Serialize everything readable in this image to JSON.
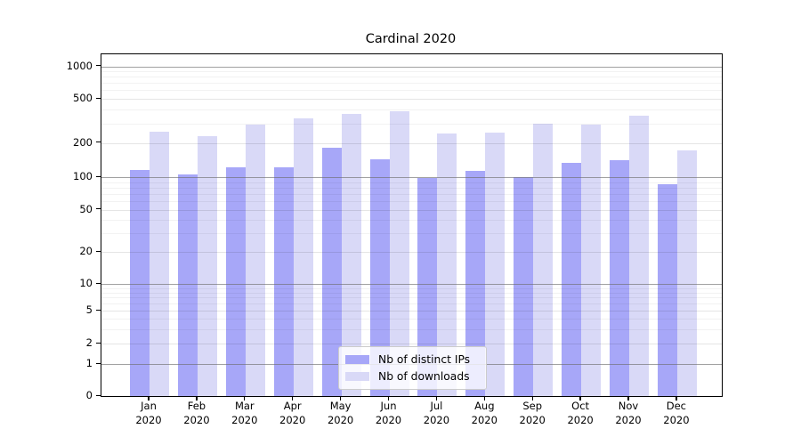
{
  "title": "Cardinal 2020",
  "chart_data": {
    "type": "bar",
    "title": "Cardinal 2020",
    "xlabel": "",
    "ylabel": "",
    "yscale": "symlog",
    "yticks": [
      0,
      1,
      2,
      5,
      10,
      20,
      50,
      100,
      200,
      500,
      1000
    ],
    "minor_gridline_values": [
      3,
      4,
      6,
      7,
      8,
      9,
      30,
      40,
      60,
      70,
      80,
      90,
      300,
      400,
      600,
      700,
      800,
      900
    ],
    "major_gridline_values": [
      1,
      10,
      100,
      1000
    ],
    "ylim": [
      0,
      1100
    ],
    "grid": true,
    "legend_position": "lower-center",
    "categories": [
      "Jan 2020",
      "Feb 2020",
      "Mar 2020",
      "Apr 2020",
      "May 2020",
      "Jun 2020",
      "Jul 2020",
      "Aug 2020",
      "Sep 2020",
      "Oct 2020",
      "Nov 2020",
      "Dec 2020"
    ],
    "series": [
      {
        "name": "Nb of distinct IPs",
        "color": "#a7a7f8",
        "values": [
          116,
          106,
          122,
          121,
          180,
          143,
          98,
          114,
          100,
          134,
          140,
          86
        ]
      },
      {
        "name": "Nb of downloads",
        "color": "#d9d9f7",
        "values": [
          253,
          228,
          295,
          330,
          365,
          383,
          245,
          248,
          298,
          295,
          349,
          172
        ]
      }
    ]
  }
}
